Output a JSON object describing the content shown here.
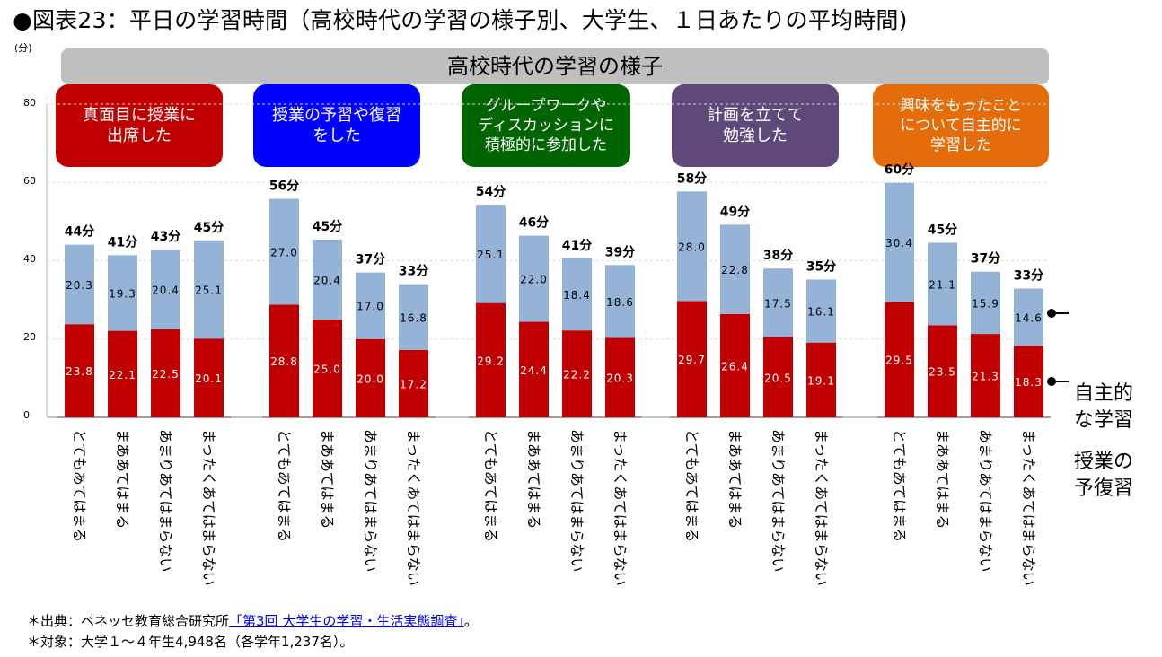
{
  "title": "●図表23：平日の学習時間（高校時代の学習の様子別、大学生、１日あたりの平均時間)",
  "unit_label": "(分)",
  "banner_label": "高校時代の学習の様子",
  "legend": {
    "top_label": "自主的\nな学習",
    "bottom_label": "授業の\n予復習"
  },
  "footnote": {
    "source_prefix": "＊出典：ベネッセ教育総合研究所",
    "source_link": "「第3回 大学生の学習・生活実態調査」",
    "source_suffix": "。",
    "target": "＊対象：大学１～４年生4,948名（各学年1,237名）。"
  },
  "colors": {
    "bottom_series": "#c00000",
    "top_series": "#95b3d7",
    "panel_1": "#c00000",
    "panel_2": "#0000ff",
    "panel_3": "#006400",
    "panel_4": "#5f497a",
    "panel_5": "#e46c0a"
  },
  "chart_data": {
    "type": "bar",
    "stacked": true,
    "ylabel": "(分)",
    "ylim": [
      0,
      80
    ],
    "yticks": [
      "0",
      "20",
      "40",
      "60",
      "80"
    ],
    "categories": [
      "とてもあてはまる",
      "まああてはまる",
      "あまりあてはまらない",
      "まったくあてはまらない"
    ],
    "series_names": [
      "授業の予復習",
      "自主的な学習"
    ],
    "groups": [
      {
        "label": "真面目に授業に\n出席した",
        "bottom": [
          23.8,
          22.1,
          22.5,
          20.1
        ],
        "top": [
          20.3,
          19.3,
          20.4,
          25.1
        ],
        "bottom_labels": [
          "23.8",
          "22.1",
          "22.5",
          "20.1"
        ],
        "top_labels": [
          "20.3",
          "19.3",
          "20.4",
          "25.1"
        ],
        "totals": [
          "44分",
          "41分",
          "43分",
          "45分"
        ]
      },
      {
        "label": "授業の予習や復習\nをした",
        "bottom": [
          28.8,
          25.0,
          20.0,
          17.2
        ],
        "top": [
          27.0,
          20.4,
          17.0,
          16.8
        ],
        "bottom_labels": [
          "28.8",
          "25.0",
          "20.0",
          "17.2"
        ],
        "top_labels": [
          "27.0",
          "20.4",
          "17.0",
          "16.8"
        ],
        "totals": [
          "56分",
          "45分",
          "37分",
          "33分"
        ]
      },
      {
        "label": "グループワークや\nディスカッションに\n積極的に参加した",
        "bottom": [
          29.2,
          24.4,
          22.2,
          20.3
        ],
        "top": [
          25.1,
          22.0,
          18.4,
          18.6
        ],
        "bottom_labels": [
          "29.2",
          "24.4",
          "22.2",
          "20.3"
        ],
        "top_labels": [
          "25.1",
          "22.0",
          "18.4",
          "18.6"
        ],
        "totals": [
          "54分",
          "46分",
          "41分",
          "39分"
        ]
      },
      {
        "label": "計画を立てて\n勉強した",
        "bottom": [
          29.7,
          26.4,
          20.5,
          19.1
        ],
        "top": [
          28.0,
          22.8,
          17.5,
          16.1
        ],
        "bottom_labels": [
          "29.7",
          "26.4",
          "20.5",
          "19.1"
        ],
        "top_labels": [
          "28.0",
          "22.8",
          "17.5",
          "16.1"
        ],
        "totals": [
          "58分",
          "49分",
          "38分",
          "35分"
        ]
      },
      {
        "label": "興味をもったこと\nについて自主的に\n学習した",
        "bottom": [
          29.5,
          23.5,
          21.3,
          18.3
        ],
        "top": [
          30.4,
          21.1,
          15.9,
          14.6
        ],
        "bottom_labels": [
          "29.5",
          "23.5",
          "21.3",
          "18.3"
        ],
        "top_labels": [
          "30.4",
          "21.1",
          "15.9",
          "14.6"
        ],
        "totals": [
          "60分",
          "45分",
          "37分",
          "33分"
        ]
      }
    ]
  }
}
